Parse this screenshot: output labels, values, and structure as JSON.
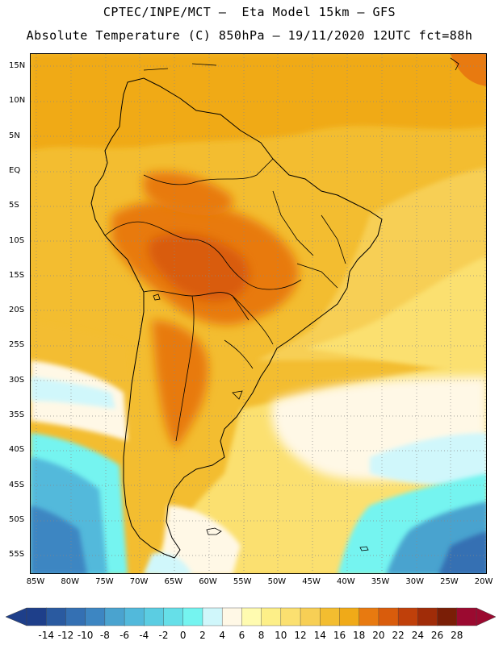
{
  "title_line1": "CPTEC/INPE/MCT –  Eta Model 15km – GFS",
  "title_line2": "Absolute Temperature (C) 850hPa – 19/11/2020 12UTC fct=88h",
  "lat_labels": [
    "15N",
    "10N",
    "5N",
    "EQ",
    "5S",
    "10S",
    "15S",
    "20S",
    "25S",
    "30S",
    "35S",
    "40S",
    "45S",
    "50S",
    "55S"
  ],
  "lon_labels": [
    "85W",
    "80W",
    "75W",
    "70W",
    "65W",
    "60W",
    "55W",
    "50W",
    "45W",
    "40W",
    "35W",
    "30W",
    "25W",
    "20W"
  ],
  "colorbar": {
    "levels": [
      "-14",
      "-12",
      "-10",
      "-8",
      "-6",
      "-4",
      "-2",
      "0",
      "2",
      "4",
      "6",
      "8",
      "10",
      "12",
      "14",
      "16",
      "18",
      "20",
      "22",
      "24",
      "26",
      "28"
    ],
    "colors": [
      "#1e3f8a",
      "#2a5aa0",
      "#3470b3",
      "#3d86c2",
      "#4aa3cf",
      "#52b9db",
      "#5bcde2",
      "#66dfe8",
      "#75f4f0",
      "#d0f7fb",
      "#fff8e6",
      "#fffbb0",
      "#fdef88",
      "#fbe070",
      "#f7cf55",
      "#f3bd30",
      "#f0aa18",
      "#e87a10",
      "#d95c0c",
      "#c0400a",
      "#a02c08",
      "#7a1e06",
      "#9b0a30"
    ],
    "under_color": "#1e3f8a",
    "over_color": "#9b0a30"
  }
}
